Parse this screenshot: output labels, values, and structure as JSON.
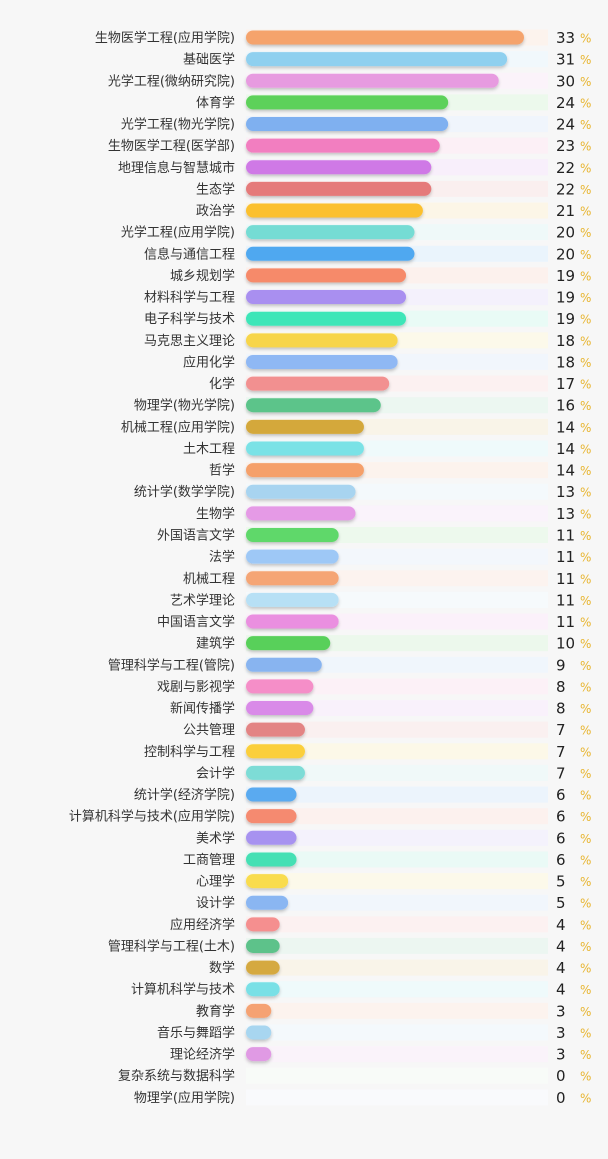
{
  "chart_data": {
    "type": "bar",
    "orientation": "horizontal",
    "categories": [
      "生物医学工程(应用学院)",
      "基础医学",
      "光学工程(微纳研究院)",
      "体育学",
      "光学工程(物光学院)",
      "生物医学工程(医学部)",
      "地理信息与智慧城市",
      "生态学",
      "政治学",
      "光学工程(应用学院)",
      "信息与通信工程",
      "城乡规划学",
      "材料科学与工程",
      "电子科学与技术",
      "马克思主义理论",
      "应用化学",
      "化学",
      "物理学(物光学院)",
      "机械工程(应用学院)",
      "土木工程",
      "哲学",
      "统计学(数学学院)",
      "生物学",
      "外国语言文学",
      "法学",
      "机械工程",
      "艺术学理论",
      "中国语言文学",
      "建筑学",
      "管理科学与工程(管院)",
      "戏剧与影视学",
      "新闻传播学",
      "公共管理",
      "控制科学与工程",
      "会计学",
      "统计学(经济学院)",
      "计算机科学与技术(应用学院)",
      "美术学",
      "工商管理",
      "心理学",
      "设计学",
      "应用经济学",
      "管理科学与工程(土木)",
      "数学",
      "计算机科学与技术",
      "教育学",
      "音乐与舞蹈学",
      "理论经济学",
      "复杂系统与数据科学",
      "物理学(应用学院)"
    ],
    "values": [
      33,
      31,
      30,
      24,
      24,
      23,
      22,
      22,
      21,
      20,
      20,
      19,
      19,
      19,
      18,
      18,
      17,
      16,
      14,
      14,
      14,
      13,
      13,
      11,
      11,
      11,
      11,
      11,
      10,
      9,
      8,
      8,
      7,
      7,
      7,
      6,
      6,
      6,
      6,
      5,
      5,
      4,
      4,
      4,
      4,
      3,
      3,
      3,
      0,
      0
    ],
    "unit": "%",
    "xlim": [
      0,
      33
    ],
    "grid": false,
    "legend": "none",
    "colors": [
      "#f5a36c",
      "#8fd0ef",
      "#e79be0",
      "#5dd15a",
      "#7fb0f0",
      "#f27ec0",
      "#cf79e6",
      "#e57a7a",
      "#fbc02d",
      "#74dcd4",
      "#4fa8f0",
      "#f68a6a",
      "#a98ff0",
      "#3de6b8",
      "#f7d54a",
      "#8fb8f4",
      "#f29090",
      "#5cc48a",
      "#d4a83a",
      "#7ae2e6",
      "#f5a06a",
      "#a8d4f0",
      "#e59ae6",
      "#5fd86a",
      "#9ec8f6",
      "#f5a574",
      "#b7e0f5",
      "#ea8fe0",
      "#58d05a",
      "#88b4f0",
      "#f58ec8",
      "#d98ae8",
      "#e38484",
      "#fbcf3a",
      "#7ddcd6",
      "#5aaaf0",
      "#f58a70",
      "#a792f0",
      "#45e0b4",
      "#f9dc4e",
      "#8ab6f2",
      "#f58f8f",
      "#5dc28a",
      "#d5a940",
      "#79e0e6",
      "#f5a273",
      "#a8d6f0",
      "#e09ae4",
      "#cfe8cf",
      "#d6e4f0"
    ]
  }
}
